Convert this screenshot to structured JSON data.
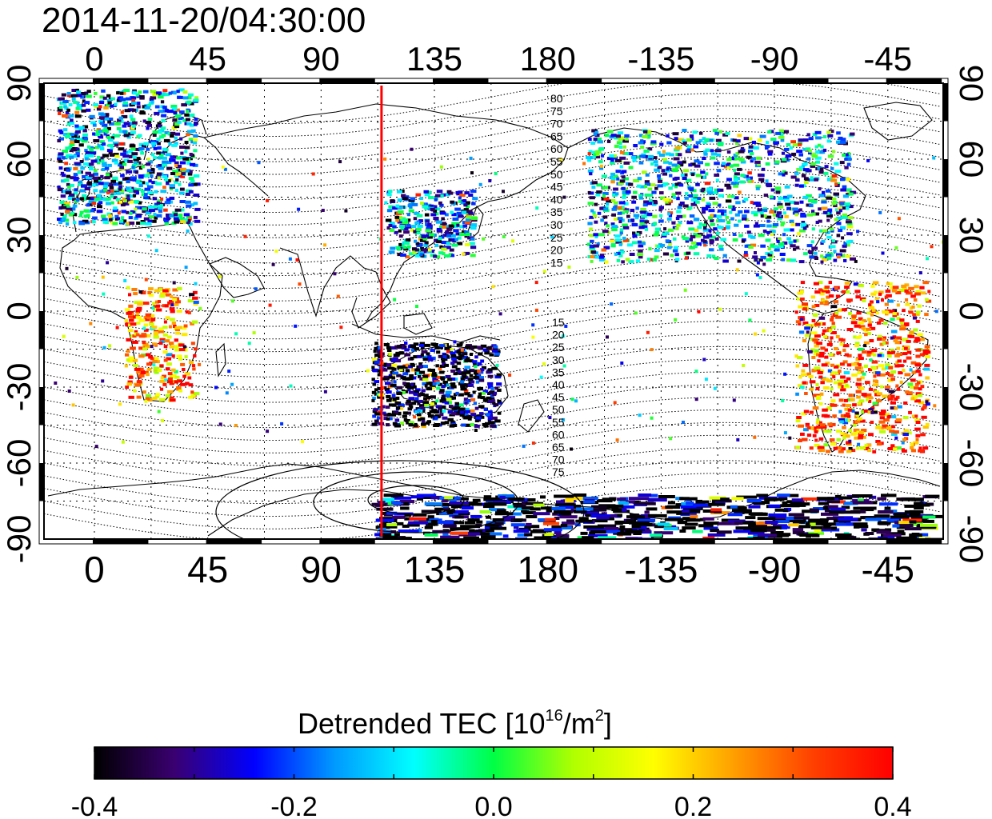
{
  "title": "2014-11-20/04:30:00",
  "chart_data": {
    "type": "heatmap",
    "title": "2014-11-20/04:30:00",
    "x_ticks_top": [
      "0",
      "45",
      "90",
      "135",
      "180",
      "-135",
      "-90",
      "-45"
    ],
    "x_ticks_bottom": [
      "0",
      "45",
      "90",
      "135",
      "180",
      "-135",
      "-90",
      "-45"
    ],
    "y_ticks_left": [
      "90",
      "60",
      "30",
      "0",
      "-30",
      "-60",
      "-90"
    ],
    "y_ticks_right": [
      "90",
      "60",
      "30",
      "0",
      "-30",
      "-60",
      "-90"
    ],
    "lon_range": [
      -20,
      337
    ],
    "lat_range": [
      -90,
      90
    ],
    "grid": "dotted",
    "marker_longitude": 114,
    "marker_color": "#ff0000",
    "magnetic_latitude_labels_north": [
      "80",
      "75",
      "70",
      "65",
      "60",
      "55",
      "50",
      "45",
      "40",
      "35",
      "30",
      "25",
      "20",
      "15"
    ],
    "magnetic_latitude_labels_south": [
      "15",
      "20",
      "25",
      "30",
      "35",
      "40",
      "45",
      "50",
      "55",
      "60",
      "65",
      "70",
      "75"
    ],
    "colorbar": {
      "label_text": "Detrended TEC  [10",
      "label_exp": "16",
      "label_unit": "/m",
      "label_exp2": "2",
      "label_close": "]",
      "min": -0.4,
      "max": 0.4,
      "ticks": [
        "-0.4",
        "-0.2",
        "0.0",
        "0.2",
        "0.4"
      ],
      "colors": [
        "#000000",
        "#3a0070",
        "#0000ff",
        "#0099ff",
        "#00ffff",
        "#00ff44",
        "#b0ff00",
        "#ffff00",
        "#ffa000",
        "#ff4000",
        "#ff0000"
      ]
    },
    "data_regions": [
      {
        "name": "europe",
        "lon": [
          -15,
          40
        ],
        "lat": [
          35,
          88
        ],
        "dominant": -0.2
      },
      {
        "name": "east-asia",
        "lon": [
          115,
          150
        ],
        "lat": [
          22,
          48
        ],
        "dominant": -0.2
      },
      {
        "name": "australia",
        "lon": [
          110,
          160
        ],
        "lat": [
          -45,
          -12
        ],
        "dominant": -0.4
      },
      {
        "name": "north-america",
        "lon": [
          195,
          300
        ],
        "lat": [
          20,
          72
        ],
        "dominant": -0.15
      },
      {
        "name": "south-america",
        "lon": [
          278,
          330
        ],
        "lat": [
          -55,
          12
        ],
        "dominant": 0.3
      },
      {
        "name": "southern-africa",
        "lon": [
          12,
          40
        ],
        "lat": [
          -35,
          10
        ],
        "dominant": 0.3
      },
      {
        "name": "antarctica",
        "lon": [
          110,
          330
        ],
        "lat": [
          -90,
          -72
        ],
        "dominant": -0.4
      }
    ]
  }
}
